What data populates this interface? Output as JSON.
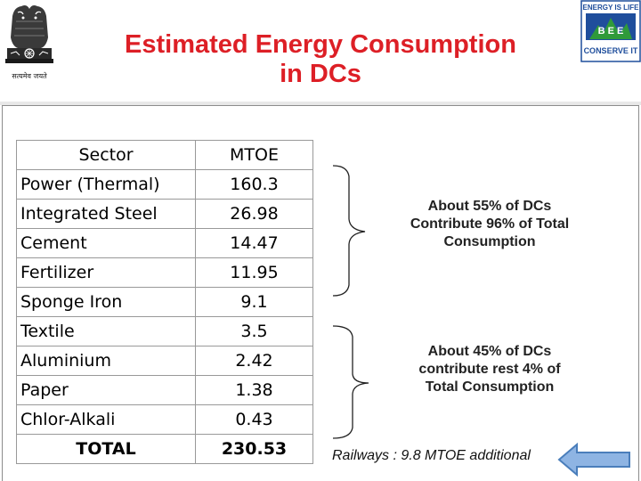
{
  "header": {
    "title_line1": "Estimated Energy Consumption",
    "title_line2": "in DCs",
    "emblem_caption": "सत्यमेव जयते",
    "bee_logo_top": "ENERGY IS LIFE",
    "bee_logo_mid": "B E E",
    "bee_logo_bottom": "CONSERVE IT"
  },
  "table": {
    "headers": {
      "sector": "Sector",
      "mtoe": "MTOE"
    },
    "rows": [
      {
        "sector": "Power (Thermal)",
        "mtoe": "160.3"
      },
      {
        "sector": "Integrated Steel",
        "mtoe": "26.98"
      },
      {
        "sector": "Cement",
        "mtoe": "14.47"
      },
      {
        "sector": "Fertilizer",
        "mtoe": "11.95"
      },
      {
        "sector": "Sponge Iron",
        "mtoe": "9.1"
      },
      {
        "sector": "Textile",
        "mtoe": "3.5"
      },
      {
        "sector": "Aluminium",
        "mtoe": "2.42"
      },
      {
        "sector": "Paper",
        "mtoe": "1.38"
      },
      {
        "sector": "Chlor-Alkali",
        "mtoe": "0.43"
      }
    ],
    "total": {
      "sector": "TOTAL",
      "mtoe": "230.53"
    }
  },
  "notes": {
    "group1": [
      "About 55% of DCs",
      "Contribute 96% of Total",
      "Consumption"
    ],
    "group2": [
      "About 45% of DCs",
      "contribute rest 4% of",
      "Total Consumption"
    ]
  },
  "footer": {
    "railways": "Railways : 9.8 MTOE additional"
  },
  "colors": {
    "title": "#dd1f26",
    "arrow_fill": "#8eb4e3",
    "arrow_stroke": "#4a7ebb"
  },
  "icons": {
    "emblem": "national-emblem-icon",
    "logo": "bee-logo-icon",
    "arrow": "left-arrow-icon"
  }
}
